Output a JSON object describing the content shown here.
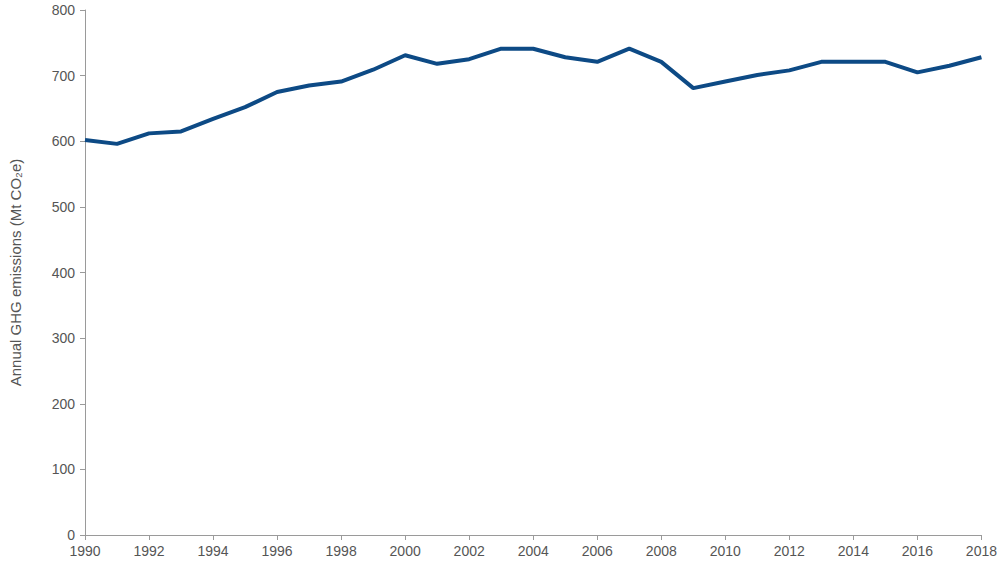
{
  "chart_data": {
    "type": "line",
    "ylabel": "Annual GHG emissions (Mt CO₂e)",
    "x": [
      1990,
      1991,
      1992,
      1993,
      1994,
      1995,
      1996,
      1997,
      1998,
      1999,
      2000,
      2001,
      2002,
      2003,
      2004,
      2005,
      2006,
      2007,
      2008,
      2009,
      2010,
      2011,
      2012,
      2013,
      2014,
      2015,
      2016,
      2017,
      2018
    ],
    "values": [
      602,
      596,
      612,
      615,
      634,
      652,
      675,
      685,
      691,
      709,
      731,
      718,
      725,
      741,
      741,
      728,
      721,
      741,
      721,
      681,
      691,
      701,
      708,
      721,
      721,
      721,
      705,
      715,
      728
    ],
    "color": "#0d4a85",
    "marker": "none",
    "xlim": [
      1990,
      2018
    ],
    "xticks": [
      1990,
      1992,
      1994,
      1996,
      1998,
      2000,
      2002,
      2004,
      2006,
      2008,
      2010,
      2012,
      2014,
      2016,
      2018
    ],
    "ylim": [
      0,
      800
    ],
    "yticks": [
      0,
      100,
      200,
      300,
      400,
      500,
      600,
      700,
      800
    ],
    "grid": false
  }
}
